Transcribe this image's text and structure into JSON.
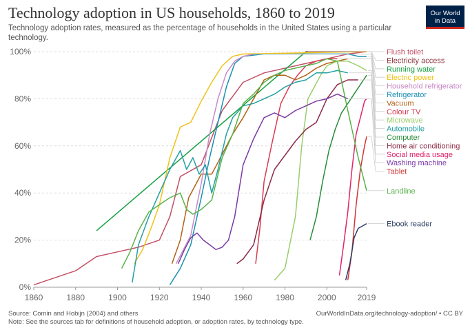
{
  "header": {
    "title": "Technology adoption in US households, 1860 to 2019",
    "subtitle": "Technology adoption rates, measured as the percentage of households in the United States using a particular technology.",
    "logo_line1": "Our World",
    "logo_line2": "in Data"
  },
  "footer": {
    "source": "Source: Comin and Hobijn (2004) and others",
    "note": "Note: See the sources tab for definitions of household adoption, or adoption rates, by technology type.",
    "url": "OurWorldInData.org/technology-adoption/ • CC BY"
  },
  "chart_data": {
    "type": "line",
    "title": "Technology adoption in US households, 1860 to 2019",
    "xlim": [
      1860,
      2019
    ],
    "ylim": [
      0,
      100
    ],
    "x_ticks": [
      "1860",
      "1880",
      "1900",
      "1920",
      "1940",
      "1960",
      "1980",
      "2000",
      "2019"
    ],
    "y_ticks": [
      "0%",
      "20%",
      "40%",
      "60%",
      "80%",
      "100%"
    ],
    "grid": "horizontal dashed",
    "legend": "right, labels at line ends",
    "series": [
      {
        "name": "Flush toilet",
        "color": "#c15065",
        "points": [
          [
            1860,
            1
          ],
          [
            1880,
            7
          ],
          [
            1890,
            13
          ],
          [
            1900,
            15
          ],
          [
            1910,
            17
          ],
          [
            1920,
            20
          ],
          [
            1925,
            30
          ],
          [
            1930,
            47
          ],
          [
            1940,
            52
          ],
          [
            1950,
            75
          ],
          [
            1960,
            87
          ],
          [
            1970,
            91
          ],
          [
            1990,
            95
          ],
          [
            2000,
            97
          ],
          [
            2010,
            99
          ],
          [
            2019,
            100
          ]
        ]
      },
      {
        "name": "Electricity access",
        "color": "#883039",
        "points": [
          [
            1990,
            100
          ],
          [
            2019,
            100
          ]
        ]
      },
      {
        "name": "Running water",
        "color": "#18a043",
        "points": [
          [
            1890,
            24
          ],
          [
            1990,
            100
          ]
        ]
      },
      {
        "name": "Vacuum",
        "color": "#b16214",
        "points": [
          [
            1926,
            10
          ],
          [
            1930,
            20
          ],
          [
            1934,
            38
          ],
          [
            1940,
            48
          ],
          [
            1945,
            48
          ],
          [
            1948,
            53
          ],
          [
            1955,
            65
          ],
          [
            1960,
            72
          ],
          [
            1965,
            80
          ],
          [
            1970,
            88
          ],
          [
            1975,
            90
          ],
          [
            1980,
            90
          ],
          [
            1985,
            88
          ],
          [
            1990,
            90
          ],
          [
            1995,
            93
          ],
          [
            2000,
            95
          ],
          [
            2005,
            96
          ],
          [
            2010,
            97
          ]
        ]
      },
      {
        "name": "Refrigerator",
        "color": "#1a90b3",
        "points": [
          [
            1925,
            1
          ],
          [
            1930,
            8
          ],
          [
            1935,
            18
          ],
          [
            1940,
            38
          ],
          [
            1944,
            55
          ],
          [
            1948,
            70
          ],
          [
            1952,
            85
          ],
          [
            1956,
            95
          ],
          [
            1960,
            98
          ],
          [
            1970,
            99
          ],
          [
            1980,
            99
          ],
          [
            1990,
            99
          ],
          [
            2000,
            99
          ],
          [
            2005,
            99
          ],
          [
            2010,
            99
          ],
          [
            2015,
            98
          ],
          [
            2019,
            98
          ]
        ]
      },
      {
        "name": "Electric power",
        "color": "#f2c117",
        "points": [
          [
            1908,
            10
          ],
          [
            1912,
            16
          ],
          [
            1916,
            25
          ],
          [
            1920,
            35
          ],
          [
            1925,
            55
          ],
          [
            1930,
            68
          ],
          [
            1935,
            70
          ],
          [
            1940,
            79
          ],
          [
            1945,
            87
          ],
          [
            1950,
            94
          ],
          [
            1955,
            98
          ],
          [
            1960,
            99
          ],
          [
            2019,
            100
          ]
        ]
      },
      {
        "name": "Household refrigerator",
        "color": "#c78ac6",
        "points": [
          [
            1928,
            10
          ],
          [
            1935,
            22
          ],
          [
            1940,
            44
          ],
          [
            1944,
            65
          ],
          [
            1948,
            80
          ],
          [
            1952,
            91
          ],
          [
            1956,
            96
          ],
          [
            1960,
            98
          ],
          [
            1965,
            99
          ]
        ]
      },
      {
        "name": "Colour TV",
        "color": "#d73c50",
        "points": [
          [
            1966,
            10
          ],
          [
            1968,
            25
          ],
          [
            1970,
            45
          ],
          [
            1974,
            62
          ],
          [
            1978,
            78
          ],
          [
            1982,
            85
          ],
          [
            1986,
            90
          ],
          [
            1990,
            94
          ],
          [
            1995,
            96
          ],
          [
            2000,
            97
          ],
          [
            2005,
            97
          ]
        ]
      },
      {
        "name": "Microwave",
        "color": "#9acd6b",
        "points": [
          [
            1975,
            3
          ],
          [
            1980,
            8
          ],
          [
            1985,
            30
          ],
          [
            1988,
            60
          ],
          [
            1991,
            80
          ],
          [
            1994,
            85
          ],
          [
            1997,
            90
          ],
          [
            2000,
            94
          ],
          [
            2005,
            96
          ],
          [
            2010,
            96
          ],
          [
            2015,
            94
          ],
          [
            2019,
            92
          ]
        ]
      },
      {
        "name": "Automobile",
        "color": "#23a0a4",
        "points": [
          [
            1907,
            2
          ],
          [
            1910,
            18
          ],
          [
            1915,
            30
          ],
          [
            1920,
            40
          ],
          [
            1925,
            50
          ],
          [
            1930,
            58
          ],
          [
            1933,
            50
          ],
          [
            1936,
            55
          ],
          [
            1939,
            48
          ],
          [
            1942,
            52
          ],
          [
            1945,
            40
          ],
          [
            1948,
            50
          ],
          [
            1952,
            65
          ],
          [
            1955,
            72
          ],
          [
            1960,
            77
          ],
          [
            1965,
            78
          ],
          [
            1970,
            80
          ],
          [
            1975,
            82
          ],
          [
            1980,
            85
          ],
          [
            1985,
            87
          ],
          [
            1990,
            88
          ],
          [
            1995,
            91
          ],
          [
            2000,
            91
          ],
          [
            2005,
            92
          ],
          [
            2010,
            91
          ]
        ]
      },
      {
        "name": "Computer",
        "color": "#2a8c3a",
        "points": [
          [
            1992,
            20
          ],
          [
            1995,
            30
          ],
          [
            1998,
            45
          ],
          [
            2001,
            58
          ],
          [
            2004,
            67
          ],
          [
            2007,
            74
          ],
          [
            2010,
            78
          ],
          [
            2013,
            82
          ],
          [
            2016,
            86
          ],
          [
            2019,
            90
          ]
        ]
      },
      {
        "name": "Home air conditioning",
        "color": "#8c2a46",
        "points": [
          [
            1957,
            10
          ],
          [
            1960,
            12
          ],
          [
            1965,
            18
          ],
          [
            1970,
            37
          ],
          [
            1975,
            50
          ],
          [
            1980,
            56
          ],
          [
            1985,
            62
          ],
          [
            1990,
            67
          ],
          [
            1995,
            70
          ],
          [
            2000,
            80
          ],
          [
            2005,
            86
          ],
          [
            2010,
            88
          ],
          [
            2015,
            88
          ]
        ]
      },
      {
        "name": "Social media usage",
        "color": "#e0236a",
        "points": [
          [
            2006,
            5
          ],
          [
            2008,
            18
          ],
          [
            2010,
            32
          ],
          [
            2012,
            50
          ],
          [
            2014,
            65
          ],
          [
            2016,
            72
          ],
          [
            2018,
            79
          ],
          [
            2019,
            80
          ]
        ]
      },
      {
        "name": "Washing machine",
        "color": "#7b3aa3",
        "points": [
          [
            1929,
            10
          ],
          [
            1932,
            16
          ],
          [
            1935,
            21
          ],
          [
            1938,
            23
          ],
          [
            1941,
            20
          ],
          [
            1944,
            18
          ],
          [
            1947,
            16
          ],
          [
            1950,
            17
          ],
          [
            1953,
            20
          ],
          [
            1956,
            30
          ],
          [
            1960,
            52
          ],
          [
            1965,
            63
          ],
          [
            1970,
            72
          ],
          [
            1975,
            74
          ],
          [
            1980,
            72
          ],
          [
            1985,
            75
          ],
          [
            1990,
            77
          ],
          [
            1995,
            79
          ],
          [
            2000,
            80
          ],
          [
            2005,
            82
          ],
          [
            2010,
            80
          ]
        ]
      },
      {
        "name": "Tablet",
        "color": "#d13535",
        "points": [
          [
            2010,
            3
          ],
          [
            2012,
            15
          ],
          [
            2014,
            35
          ],
          [
            2016,
            50
          ],
          [
            2018,
            60
          ],
          [
            2019,
            64
          ]
        ]
      },
      {
        "name": "Landline",
        "color": "#58b34a",
        "points": [
          [
            1902,
            8
          ],
          [
            1906,
            15
          ],
          [
            1910,
            24
          ],
          [
            1915,
            32
          ],
          [
            1920,
            35
          ],
          [
            1925,
            38
          ],
          [
            1930,
            40
          ],
          [
            1933,
            33
          ],
          [
            1936,
            31
          ],
          [
            1940,
            33
          ],
          [
            1945,
            37
          ],
          [
            1950,
            55
          ],
          [
            1955,
            65
          ],
          [
            1960,
            78
          ],
          [
            1965,
            82
          ],
          [
            1970,
            87
          ],
          [
            1975,
            90
          ],
          [
            1980,
            92
          ],
          [
            1985,
            93
          ],
          [
            1990,
            94
          ],
          [
            1995,
            95
          ],
          [
            2000,
            97
          ],
          [
            2005,
            96
          ],
          [
            2010,
            75
          ],
          [
            2015,
            55
          ],
          [
            2019,
            41
          ]
        ]
      },
      {
        "name": "Ebook reader",
        "color": "#2c3e63",
        "points": [
          [
            2009,
            3
          ],
          [
            2011,
            10
          ],
          [
            2013,
            21
          ],
          [
            2015,
            25
          ],
          [
            2017,
            26
          ],
          [
            2019,
            27
          ]
        ]
      }
    ]
  }
}
